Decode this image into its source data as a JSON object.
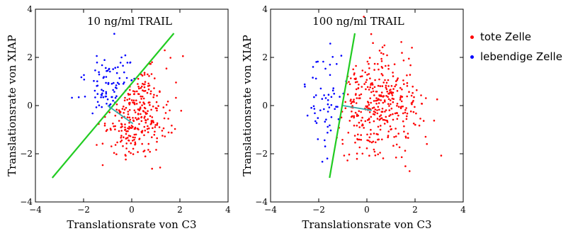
{
  "legend": {
    "items": [
      {
        "label": "tote Zelle",
        "color": "#ff0000"
      },
      {
        "label": "lebendige Zelle",
        "color": "#0000ff"
      }
    ]
  },
  "chart_data": [
    {
      "type": "scatter",
      "title": "10 ng/ml TRAIL",
      "xlabel": "Translationsrate von C3",
      "ylabel": "Translationsrate von XIAP",
      "xlim": [
        -4,
        4
      ],
      "ylim": [
        -4,
        4
      ],
      "xticks": [
        -4,
        -2,
        0,
        2,
        4
      ],
      "yticks": [
        -4,
        -2,
        0,
        2,
        4
      ],
      "grid": false,
      "series": [
        {
          "name": "tote Zelle",
          "color": "#ff0000",
          "n_points": 290,
          "x_mean": 0.1,
          "x_sd": 0.75,
          "y_mean": -0.25,
          "y_sd": 0.95,
          "selection": "below_boundary"
        },
        {
          "name": "lebendige Zelle",
          "color": "#0000ff",
          "n_points": 90,
          "x_mean": -0.7,
          "x_sd": 0.65,
          "y_mean": 0.6,
          "y_sd": 0.8,
          "selection": "above_boundary"
        }
      ],
      "lines": [
        {
          "color": "#22cc22",
          "x": [
            -3.3,
            1.75
          ],
          "y": [
            -3.0,
            3.0
          ]
        },
        {
          "color": "#33aaaa",
          "x": [
            -1.0,
            0.05
          ],
          "y": [
            0.0,
            -0.75
          ]
        }
      ]
    },
    {
      "type": "scatter",
      "title": "100 ng/ml TRAIL",
      "xlabel": "Translationsrate von C3",
      "ylabel": "Translationsrate von XIAP",
      "xlim": [
        -4,
        4
      ],
      "ylim": [
        -4,
        4
      ],
      "xticks": [
        -4,
        -2,
        0,
        2,
        4
      ],
      "yticks": [
        -4,
        -2,
        0,
        2,
        4
      ],
      "grid": false,
      "series": [
        {
          "name": "tote Zelle",
          "color": "#ff0000",
          "n_points": 380,
          "x_mean": 0.3,
          "x_sd": 0.95,
          "y_mean": 0.0,
          "y_sd": 1.0,
          "selection": "right_of_boundary"
        },
        {
          "name": "lebendige Zelle",
          "color": "#0000ff",
          "n_points": 60,
          "x_mean": -1.7,
          "x_sd": 0.45,
          "y_mean": 0.1,
          "y_sd": 0.9,
          "selection": "left_of_boundary"
        }
      ],
      "lines": [
        {
          "color": "#22cc22",
          "x": [
            -1.55,
            -0.5
          ],
          "y": [
            -3.0,
            3.0
          ]
        },
        {
          "color": "#33aaaa",
          "x": [
            -1.0,
            0.2
          ],
          "y": [
            0.0,
            -0.2
          ]
        }
      ]
    }
  ]
}
